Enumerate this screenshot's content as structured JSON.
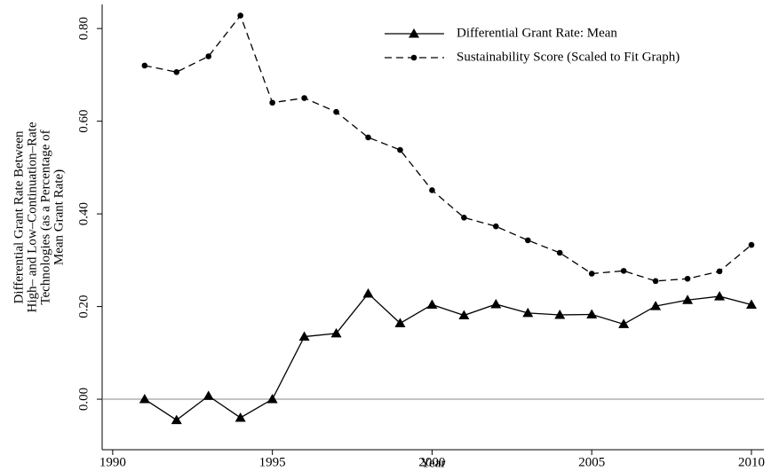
{
  "chart_data": {
    "type": "line",
    "x_label": "Year",
    "y_label": [
      "Differential Grant Rate Between",
      "High– and Low–Continuation–Rate",
      "Technologies (as a Percentage of",
      "Mean Grant Rate)"
    ],
    "x": [
      1991,
      1992,
      1993,
      1994,
      1995,
      1996,
      1997,
      1998,
      1999,
      2000,
      2001,
      2002,
      2003,
      2004,
      2005,
      2006,
      2007,
      2008,
      2009,
      2010
    ],
    "series": [
      {
        "name": "Differential Grant Rate: Mean",
        "color": "#000000",
        "marker": "triangle",
        "dash": "solid",
        "values": [
          0.0,
          -0.045,
          0.007,
          -0.04,
          0.0,
          0.135,
          0.142,
          0.228,
          0.164,
          0.204,
          0.181,
          0.205,
          0.186,
          0.182,
          0.183,
          0.162,
          0.201,
          0.214,
          0.222,
          0.204
        ]
      },
      {
        "name": "Sustainability Score (Scaled to Fit Graph)",
        "color": "#000000",
        "marker": "circle",
        "dash": "dashed",
        "values": [
          0.72,
          0.706,
          0.74,
          0.828,
          0.64,
          0.65,
          0.62,
          0.565,
          0.538,
          0.451,
          0.392,
          0.373,
          0.343,
          0.316,
          0.271,
          0.277,
          0.255,
          0.26,
          0.276,
          0.333
        ]
      }
    ],
    "xlim": [
      1989.67,
      2010.39
    ],
    "ylim": [
      -0.109,
      0.852
    ],
    "xticks": [
      1990,
      1995,
      2000,
      2005,
      2010
    ],
    "yticks": [
      {
        "value": 0,
        "label": "0.00"
      },
      {
        "value": 0.2,
        "label": "0.20"
      },
      {
        "value": 0.4,
        "label": "0.40"
      },
      {
        "value": 0.6,
        "label": "0.60"
      },
      {
        "value": 0.8,
        "label": "0.80"
      }
    ],
    "reference_line": 0,
    "legend": "top-right"
  }
}
